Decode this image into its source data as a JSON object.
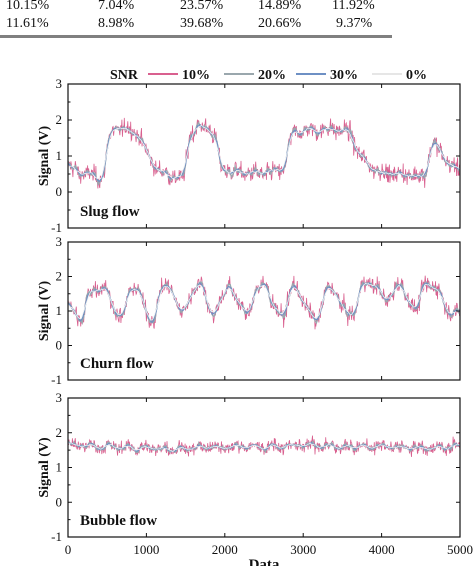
{
  "table": {
    "rows": [
      [
        "10.15%",
        "7.04%",
        "23.57%",
        "14.89%",
        "11.92%"
      ],
      [
        "11.61%",
        "8.98%",
        "39.68%",
        "20.66%",
        "9.37%"
      ]
    ]
  },
  "chart_data": {
    "type": "line",
    "legend": {
      "title": "SNR",
      "placement": "top",
      "entries": [
        {
          "label": "10%",
          "color": "#d9608f"
        },
        {
          "label": "20%",
          "color": "#9aa7ad"
        },
        {
          "label": "30%",
          "color": "#6e90c4"
        },
        {
          "label": "0%",
          "color": "#f2f2f2"
        }
      ]
    },
    "xlabel": "Data",
    "ylabel": "Signal (V)",
    "xlim": [
      0,
      5000
    ],
    "xticks": [
      "0",
      "1000",
      "2000",
      "3000",
      "4000",
      "5000"
    ],
    "ylim": [
      -1,
      3
    ],
    "yticks": [
      "-1",
      "0",
      "1",
      "2",
      "3"
    ],
    "panels": [
      {
        "title": "Slug flow",
        "noise_amplitude": 0.45,
        "base_level_points": [
          [
            0,
            0.7
          ],
          [
            150,
            0.55
          ],
          [
            300,
            0.45
          ],
          [
            450,
            0.4
          ],
          [
            520,
            1.5
          ],
          [
            600,
            1.75
          ],
          [
            800,
            1.75
          ],
          [
            900,
            1.6
          ],
          [
            1000,
            1.1
          ],
          [
            1150,
            0.6
          ],
          [
            1400,
            0.4
          ],
          [
            1480,
            0.35
          ],
          [
            1550,
            1.6
          ],
          [
            1650,
            1.8
          ],
          [
            1800,
            1.8
          ],
          [
            1880,
            1.5
          ],
          [
            1950,
            0.7
          ],
          [
            2100,
            0.55
          ],
          [
            2500,
            0.5
          ],
          [
            2750,
            0.6
          ],
          [
            2820,
            1.3
          ],
          [
            2900,
            1.7
          ],
          [
            3400,
            1.75
          ],
          [
            3600,
            1.65
          ],
          [
            3700,
            1.1
          ],
          [
            3800,
            0.8
          ],
          [
            4000,
            0.55
          ],
          [
            4200,
            0.5
          ],
          [
            4550,
            0.45
          ],
          [
            4650,
            1.4
          ],
          [
            4750,
            1.1
          ],
          [
            4900,
            0.7
          ],
          [
            5000,
            0.6
          ]
        ]
      },
      {
        "title": "Churn flow",
        "noise_amplitude": 0.45,
        "base_level_points": [
          [
            0,
            1.3
          ],
          [
            50,
            1.0
          ],
          [
            150,
            0.75
          ],
          [
            200,
            0.7
          ],
          [
            230,
            1.4
          ],
          [
            320,
            1.6
          ],
          [
            400,
            1.7
          ],
          [
            480,
            1.75
          ],
          [
            550,
            1.2
          ],
          [
            700,
            0.8
          ],
          [
            780,
            1.5
          ],
          [
            850,
            1.75
          ],
          [
            920,
            1.55
          ],
          [
            980,
            1.0
          ],
          [
            1050,
            0.75
          ],
          [
            1100,
            0.8
          ],
          [
            1180,
            1.6
          ],
          [
            1300,
            1.75
          ],
          [
            1360,
            1.4
          ],
          [
            1450,
            0.85
          ],
          [
            1600,
            1.65
          ],
          [
            1700,
            1.8
          ],
          [
            1780,
            1.3
          ],
          [
            1870,
            0.8
          ],
          [
            1950,
            1.35
          ],
          [
            2050,
            1.8
          ],
          [
            2150,
            1.3
          ],
          [
            2300,
            0.9
          ],
          [
            2400,
            1.6
          ],
          [
            2520,
            1.85
          ],
          [
            2600,
            1.2
          ],
          [
            2750,
            0.85
          ],
          [
            2870,
            1.75
          ],
          [
            2950,
            1.6
          ],
          [
            3050,
            1.0
          ],
          [
            3180,
            0.7
          ],
          [
            3320,
            1.75
          ],
          [
            3420,
            1.5
          ],
          [
            3550,
            0.9
          ],
          [
            3650,
            0.9
          ],
          [
            3750,
            1.8
          ],
          [
            3950,
            1.75
          ],
          [
            4050,
            1.2
          ],
          [
            4200,
            1.8
          ],
          [
            4300,
            1.55
          ],
          [
            4450,
            0.95
          ],
          [
            4550,
            1.85
          ],
          [
            4750,
            1.55
          ],
          [
            4850,
            1.0
          ],
          [
            5000,
            0.9
          ]
        ]
      },
      {
        "title": "Bubble flow",
        "noise_amplitude": 0.32,
        "base_level_points": [
          [
            0,
            1.65
          ],
          [
            500,
            1.6
          ],
          [
            1000,
            1.55
          ],
          [
            1500,
            1.55
          ],
          [
            2000,
            1.6
          ],
          [
            2500,
            1.6
          ],
          [
            3000,
            1.65
          ],
          [
            3500,
            1.6
          ],
          [
            4000,
            1.6
          ],
          [
            4500,
            1.55
          ],
          [
            5000,
            1.6
          ]
        ]
      }
    ]
  }
}
